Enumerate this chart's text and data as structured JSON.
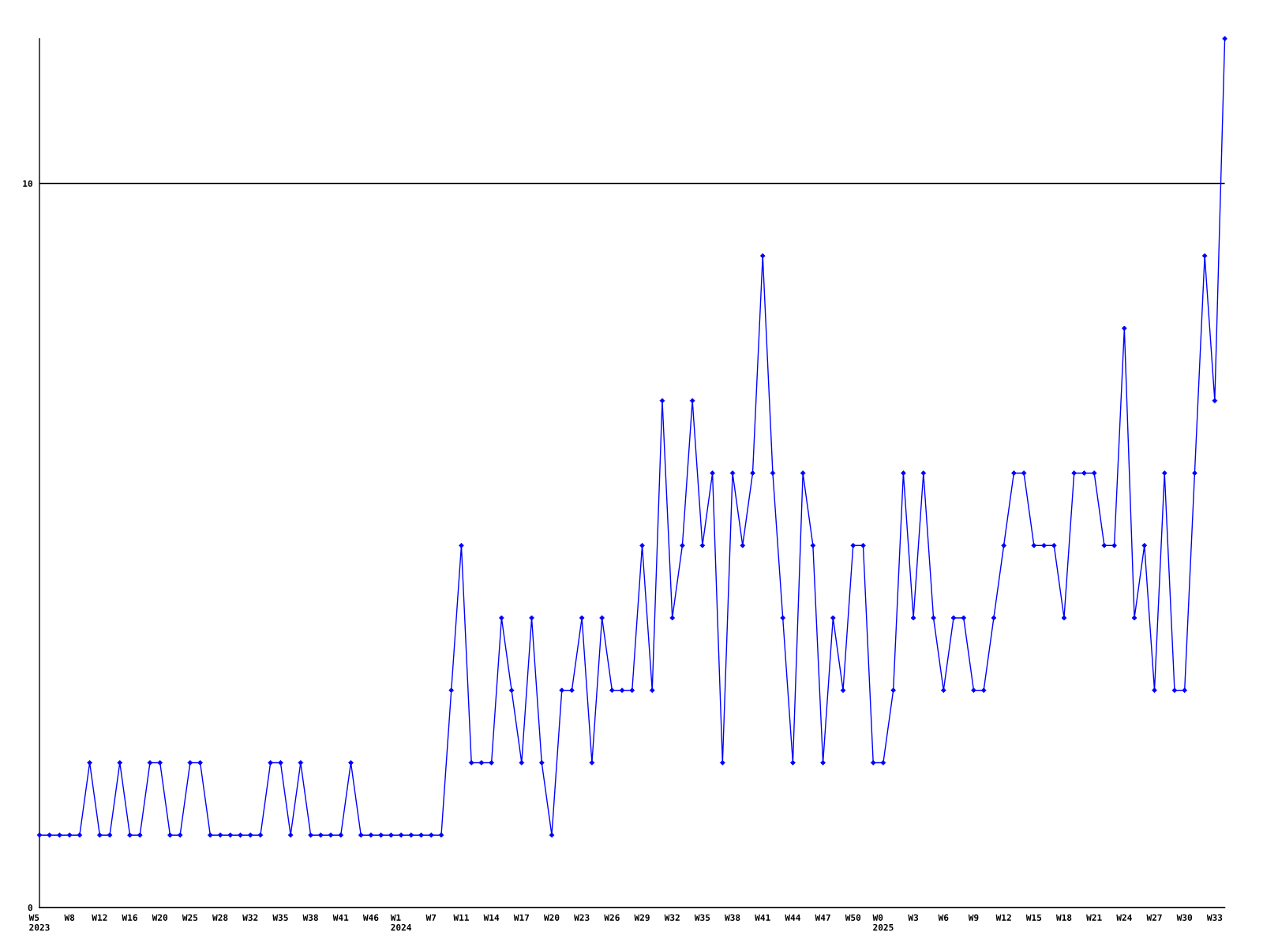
{
  "chart_data": {
    "type": "line",
    "categories": [
      "W5\n2023",
      null,
      null,
      "W8",
      null,
      null,
      "W12",
      null,
      null,
      "W16",
      null,
      null,
      "W20",
      null,
      null,
      "W25",
      null,
      null,
      "W28",
      null,
      null,
      "W32",
      null,
      null,
      "W35",
      null,
      null,
      "W38",
      null,
      null,
      "W41",
      null,
      null,
      "W46",
      null,
      null,
      "W1\n2024",
      null,
      null,
      "W7",
      null,
      null,
      "W11",
      null,
      null,
      "W14",
      null,
      null,
      "W17",
      null,
      null,
      "W20",
      null,
      null,
      "W23",
      null,
      null,
      "W26",
      null,
      null,
      "W29",
      null,
      null,
      "W32",
      null,
      null,
      "W35",
      null,
      null,
      "W38",
      null,
      null,
      "W41",
      null,
      null,
      "W44",
      null,
      null,
      "W47",
      null,
      null,
      "W50",
      null,
      null,
      "W0\n2025",
      null,
      null,
      "W3",
      null,
      null,
      "W6",
      null,
      null,
      "W9",
      null,
      null,
      "W12",
      null,
      null,
      "W15",
      null,
      null,
      "W18",
      null,
      null,
      "W21",
      null,
      null,
      "W24",
      null,
      null,
      "W27",
      null,
      null,
      "W30",
      null,
      null,
      "W33",
      null
    ],
    "series": [
      {
        "color": "#0000ff",
        "values": [
          1,
          1,
          1,
          1,
          1,
          2,
          1,
          1,
          2,
          1,
          1,
          2,
          2,
          1,
          1,
          2,
          2,
          1,
          1,
          1,
          1,
          1,
          1,
          2,
          2,
          1,
          2,
          1,
          1,
          1,
          1,
          2,
          1,
          1,
          1,
          1,
          1,
          1,
          1,
          1,
          1,
          3,
          5,
          2,
          2,
          2,
          4,
          3,
          2,
          4,
          2,
          1,
          3,
          3,
          4,
          2,
          4,
          3,
          3,
          3,
          5,
          3,
          7,
          4,
          5,
          7,
          5,
          6,
          2,
          6,
          5,
          6,
          9,
          6,
          4,
          2,
          6,
          5,
          2,
          4,
          3,
          5,
          5,
          2,
          2,
          3,
          6,
          4,
          6,
          4,
          3,
          4,
          4,
          3,
          3,
          4,
          5,
          6,
          6,
          5,
          5,
          5,
          4,
          6,
          6,
          6,
          5,
          5,
          8,
          4,
          5,
          3,
          6,
          3,
          3,
          6,
          9,
          7,
          12
        ]
      }
    ],
    "ylim": [
      0,
      12
    ],
    "yticks": [
      0,
      10
    ],
    "grid": "y",
    "marker": "diamond",
    "line_style": "solid"
  }
}
